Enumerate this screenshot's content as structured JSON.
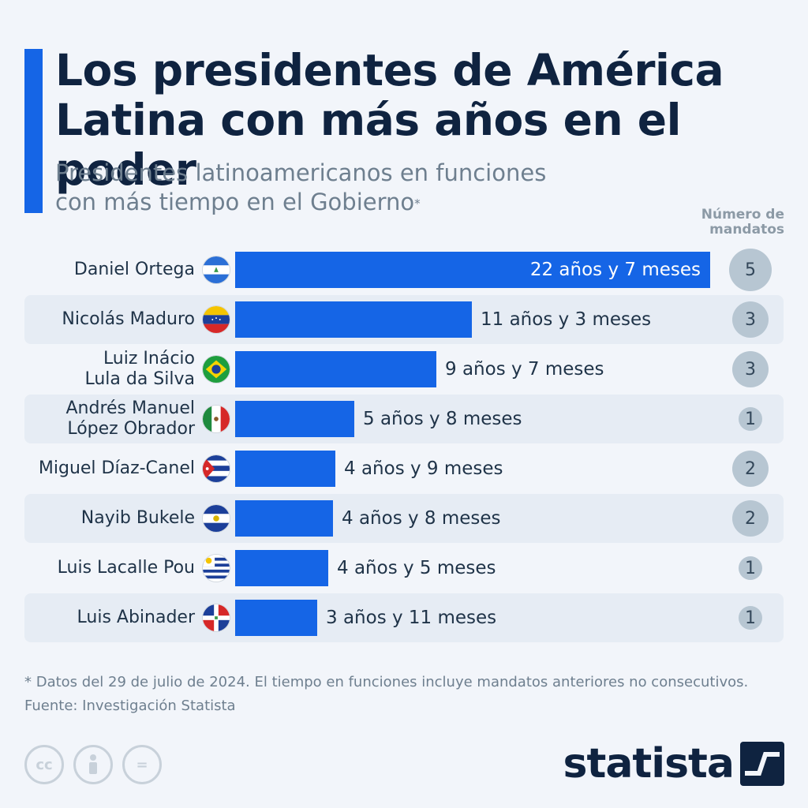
{
  "title": "Los presidentes de América\nLatina con más años en el poder",
  "subtitle": "Presidentes latinoamericanos en funciones\ncon más tiempo en el Gobierno",
  "subtitle_mark": "*",
  "column_header": "Número de\nmandatos",
  "footnote": "* Datos del 29 de julio de 2024. El tiempo en funciones incluye mandatos anteriores no consecutivos.",
  "source": "Fuente: Investigación Statista",
  "license_icons": [
    "cc",
    "person-icon",
    "equals-icon"
  ],
  "license_labels": [
    "cc",
    "",
    "="
  ],
  "brand": "statista",
  "colors": {
    "bar": "#1565e6",
    "accent": "#1565e6",
    "stripe": "#e6ecf4",
    "badge": "#b7c6d2",
    "title": "#0f2340"
  },
  "chart_data": {
    "type": "bar",
    "orientation": "horizontal",
    "value_unit": "months",
    "categories": [
      "Daniel Ortega",
      "Nicolás Maduro",
      "Luiz Inácio\nLula da Silva",
      "Andrés Manuel\nLópez Obrador",
      "Miguel Díaz-Canel",
      "Nayib Bukele",
      "Luis Lacalle Pou",
      "Luis Abinader"
    ],
    "countries": [
      "Nicaragua",
      "Venezuela",
      "Brasil",
      "México",
      "Cuba",
      "El Salvador",
      "Uruguay",
      "República Dominicana"
    ],
    "values": [
      271,
      135,
      115,
      68,
      57,
      56,
      53,
      47
    ],
    "value_labels": [
      "22 años y 7 meses",
      "11 años y 3 meses",
      "9 años y 7 meses",
      "5 años y 8 meses",
      "4 años y 9 meses",
      "4 años y 8 meses",
      "4 años y 5 meses",
      "3 años y 11 meses"
    ],
    "mandates": [
      5,
      3,
      3,
      1,
      2,
      2,
      1,
      1
    ],
    "xlim": [
      0,
      271
    ]
  }
}
